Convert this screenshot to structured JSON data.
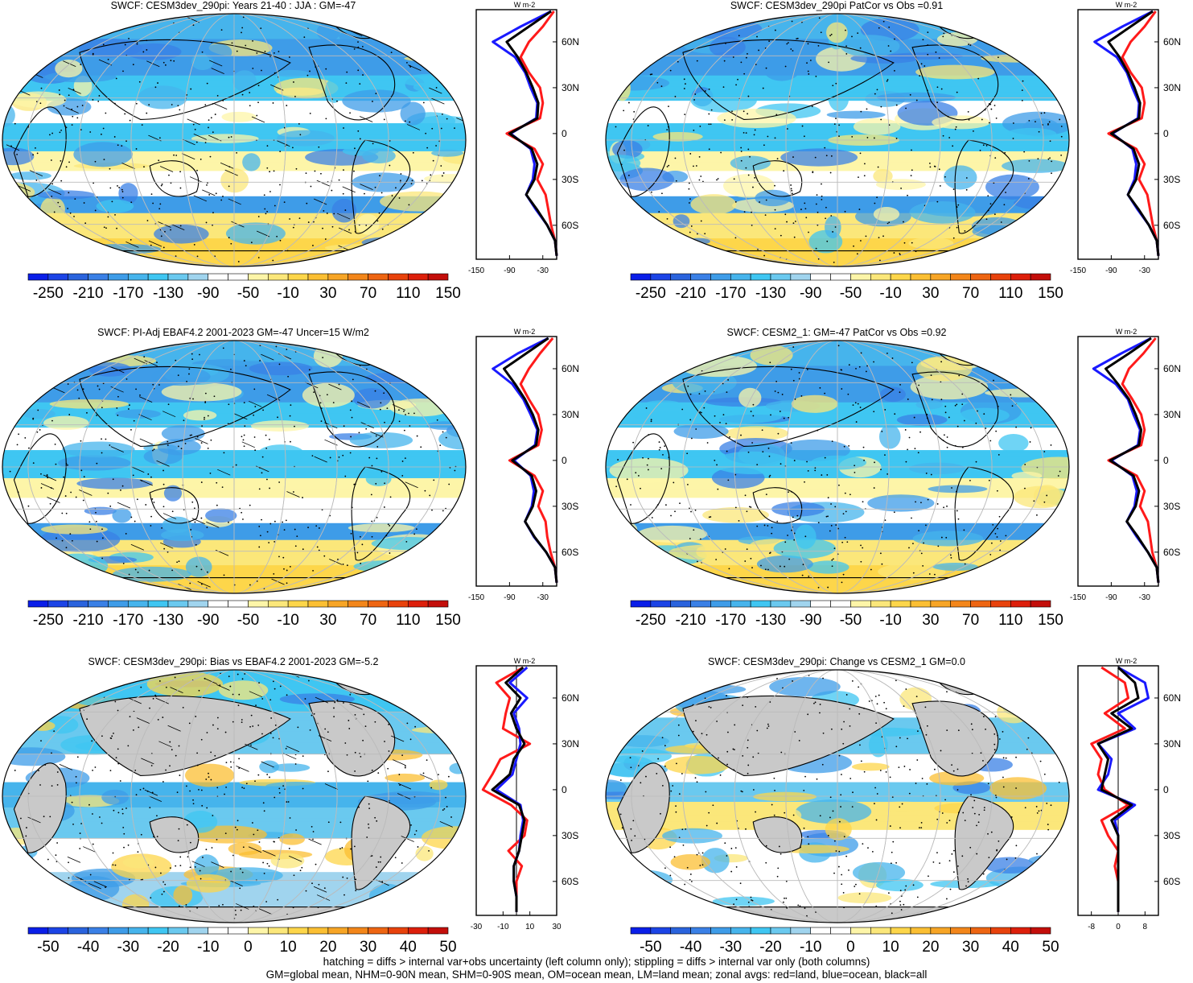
{
  "panels": [
    {
      "title": "SWCF: CESM3dev_290pi: Years 21-40 : JJA : GM=-47",
      "colorbar": {
        "labels": [
          "-250",
          "-210",
          "-170",
          "-130",
          "-90",
          "-50",
          "-10",
          "30",
          "70",
          "110",
          "150"
        ]
      },
      "zonal_xticks": [
        "-150",
        "-90",
        "-30"
      ],
      "zonal_unit": "W m-2"
    },
    {
      "title": "SWCF: CESM3dev_290pi PatCor vs Obs =0.91",
      "colorbar": {
        "labels": [
          "-250",
          "-210",
          "-170",
          "-130",
          "-90",
          "-50",
          "-10",
          "30",
          "70",
          "110",
          "150"
        ]
      },
      "zonal_xticks": [
        "-150",
        "-90",
        "-30"
      ],
      "zonal_unit": "W m-2"
    },
    {
      "title": "SWCF: PI-Adj EBAF4.2 2001-2023 GM=-47 Uncer=15 W/m2",
      "colorbar": {
        "labels": [
          "-250",
          "-210",
          "-170",
          "-130",
          "-90",
          "-50",
          "-10",
          "30",
          "70",
          "110",
          "150"
        ]
      },
      "zonal_xticks": [
        "-150",
        "-90",
        "-30"
      ],
      "zonal_unit": "W m-2"
    },
    {
      "title": "SWCF: CESM2_1: GM=-47 PatCor vs Obs =0.92",
      "colorbar": {
        "labels": [
          "-250",
          "-210",
          "-170",
          "-130",
          "-90",
          "-50",
          "-10",
          "30",
          "70",
          "110",
          "150"
        ]
      },
      "zonal_xticks": [
        "-150",
        "-90",
        "-30"
      ],
      "zonal_unit": "W m-2"
    },
    {
      "title": "SWCF: CESM3dev_290pi: Bias vs EBAF4.2 2001-2023 GM=-5.2",
      "colorbar": {
        "labels": [
          "-50",
          "-40",
          "-30",
          "-20",
          "-10",
          "0",
          "10",
          "20",
          "30",
          "40",
          "50"
        ]
      },
      "zonal_xticks": [
        "-30",
        "-10",
        "10",
        "30"
      ],
      "zonal_unit": "W m-2"
    },
    {
      "title": "SWCF: CESM3dev_290pi: Change vs CESM2_1 GM=0.0",
      "colorbar": {
        "labels": [
          "-50",
          "-40",
          "-30",
          "-20",
          "-10",
          "0",
          "10",
          "20",
          "30",
          "40",
          "50"
        ]
      },
      "zonal_xticks": [
        "-8",
        "0",
        "8"
      ],
      "zonal_unit": "W m-2"
    }
  ],
  "lat_labels": [
    "60N",
    "30N",
    "0",
    "30S",
    "60S"
  ],
  "colors": {
    "colorbar": [
      "#0a1ee8",
      "#1c44e6",
      "#2a63dd",
      "#3a80e6",
      "#3e9ce8",
      "#46b4ec",
      "#3fc6f2",
      "#6ac9ef",
      "#a0d4ee",
      "#ffffff",
      "#ffffff",
      "#fdf5a8",
      "#fbe77a",
      "#fdd64a",
      "#fbbf33",
      "#f7a526",
      "#f3861a",
      "#ee6512",
      "#e8420c",
      "#dd1f0b",
      "#c30e0a"
    ],
    "land_gray": "#c9c9c9",
    "zonal_land": "#ff1a1a",
    "zonal_ocean": "#1a1aff",
    "zonal_all": "#000000"
  },
  "chart_data": [
    {
      "type": "heatmap",
      "panel": "CESM3dev_290pi JJA",
      "lat": [
        80,
        70,
        60,
        50,
        40,
        30,
        20,
        10,
        0,
        -10,
        -20,
        -30,
        -40,
        -50,
        -60,
        -70,
        -80
      ],
      "zonal_all": [
        -15,
        -55,
        -95,
        -75,
        -60,
        -48,
        -38,
        -40,
        -90,
        -50,
        -40,
        -45,
        -60,
        -40,
        -22,
        -8,
        -2
      ],
      "zonal_land": [
        -10,
        -30,
        -55,
        -70,
        -55,
        -35,
        -30,
        -35,
        -95,
        -45,
        -30,
        -40,
        -25,
        -20,
        -15,
        -8,
        -2
      ],
      "zonal_ocean": [
        -15,
        -70,
        -120,
        -80,
        -62,
        -52,
        -40,
        -42,
        -88,
        -52,
        -45,
        -48,
        -60,
        -42,
        -22,
        -8,
        -2
      ]
    },
    {
      "type": "heatmap",
      "panel": "CESM3dev_290pi PatCor",
      "lat": [
        80,
        70,
        60,
        50,
        40,
        30,
        20,
        10,
        0,
        -10,
        -20,
        -30,
        -40,
        -50,
        -60,
        -70,
        -80
      ],
      "zonal_all": [
        -15,
        -55,
        -95,
        -75,
        -60,
        -48,
        -38,
        -40,
        -90,
        -50,
        -40,
        -45,
        -60,
        -40,
        -22,
        -8,
        -2
      ],
      "zonal_land": [
        -10,
        -30,
        -55,
        -70,
        -55,
        -35,
        -30,
        -35,
        -95,
        -45,
        -30,
        -40,
        -25,
        -20,
        -15,
        -8,
        -2
      ],
      "zonal_ocean": [
        -15,
        -70,
        -120,
        -80,
        -62,
        -52,
        -40,
        -42,
        -88,
        -52,
        -45,
        -48,
        -60,
        -42,
        -22,
        -8,
        -2
      ]
    },
    {
      "type": "heatmap",
      "panel": "PI-Adj EBAF4.2",
      "lat": [
        80,
        70,
        60,
        50,
        40,
        30,
        20,
        10,
        0,
        -10,
        -20,
        -30,
        -40,
        -50,
        -60,
        -70,
        -80
      ],
      "zonal_all": [
        -20,
        -60,
        -100,
        -80,
        -62,
        -48,
        -38,
        -42,
        -85,
        -50,
        -42,
        -48,
        -62,
        -45,
        -24,
        -8,
        -2
      ],
      "zonal_land": [
        -12,
        -35,
        -55,
        -70,
        -55,
        -38,
        -32,
        -38,
        -90,
        -45,
        -30,
        -38,
        -25,
        -22,
        -16,
        -8,
        -2
      ],
      "zonal_ocean": [
        -20,
        -75,
        -120,
        -85,
        -65,
        -52,
        -40,
        -44,
        -82,
        -52,
        -46,
        -50,
        -62,
        -46,
        -24,
        -8,
        -2
      ]
    },
    {
      "type": "heatmap",
      "panel": "CESM2_1",
      "lat": [
        80,
        70,
        60,
        50,
        40,
        30,
        20,
        10,
        0,
        -10,
        -20,
        -30,
        -40,
        -50,
        -60,
        -70,
        -80
      ],
      "zonal_all": [
        -18,
        -58,
        -100,
        -78,
        -58,
        -46,
        -36,
        -40,
        -92,
        -50,
        -40,
        -46,
        -62,
        -42,
        -24,
        -8,
        -2
      ],
      "zonal_land": [
        -10,
        -32,
        -58,
        -70,
        -52,
        -36,
        -30,
        -36,
        -95,
        -44,
        -30,
        -38,
        -24,
        -20,
        -16,
        -8,
        -2
      ],
      "zonal_ocean": [
        -18,
        -72,
        -122,
        -82,
        -60,
        -50,
        -38,
        -42,
        -90,
        -52,
        -44,
        -48,
        -62,
        -44,
        -24,
        -8,
        -2
      ]
    },
    {
      "type": "heatmap",
      "panel": "Bias vs EBAF4.2",
      "lat": [
        80,
        70,
        60,
        50,
        40,
        30,
        20,
        10,
        0,
        -10,
        -20,
        -30,
        -40,
        -50,
        -60,
        -70,
        -80
      ],
      "zonal_all": [
        5,
        -8,
        3,
        -4,
        0,
        6,
        -2,
        -5,
        -18,
        2,
        6,
        4,
        2,
        -2,
        -2,
        0,
        0
      ],
      "zonal_land": [
        5,
        -15,
        -5,
        -8,
        -10,
        10,
        -12,
        -18,
        -25,
        -4,
        8,
        6,
        -6,
        4,
        0,
        0,
        0
      ],
      "zonal_ocean": [
        8,
        -5,
        8,
        -2,
        2,
        3,
        0,
        -3,
        -15,
        3,
        5,
        3,
        2,
        -2,
        -2,
        0,
        0
      ]
    },
    {
      "type": "heatmap",
      "panel": "Change vs CESM2_1",
      "lat": [
        80,
        70,
        60,
        50,
        40,
        30,
        20,
        10,
        0,
        -10,
        -20,
        -30,
        -40,
        -50,
        -60,
        -70,
        -80
      ],
      "zonal_all": [
        0,
        5,
        6,
        -2,
        4,
        -6,
        -3,
        -4,
        -5,
        4,
        -2,
        0,
        0,
        0,
        0,
        0,
        0
      ],
      "zonal_land": [
        -5,
        2,
        3,
        -4,
        2,
        -8,
        -5,
        -6,
        -4,
        3,
        -5,
        -3,
        0,
        -1,
        0,
        0,
        0
      ],
      "zonal_ocean": [
        0,
        8,
        9,
        0,
        5,
        -6,
        -2,
        -3,
        -6,
        5,
        -1,
        0,
        0,
        0,
        0,
        0,
        0
      ]
    }
  ],
  "footer": {
    "line1": "hatching = diffs > internal var+obs uncertainty (left column only); stippling = diffs > internal var only (both columns)",
    "line2": "GM=global mean, NHM=0-90N mean, SHM=0-90S mean, OM=ocean mean, LM=land mean; zonal avgs: red=land, blue=ocean, black=all"
  }
}
